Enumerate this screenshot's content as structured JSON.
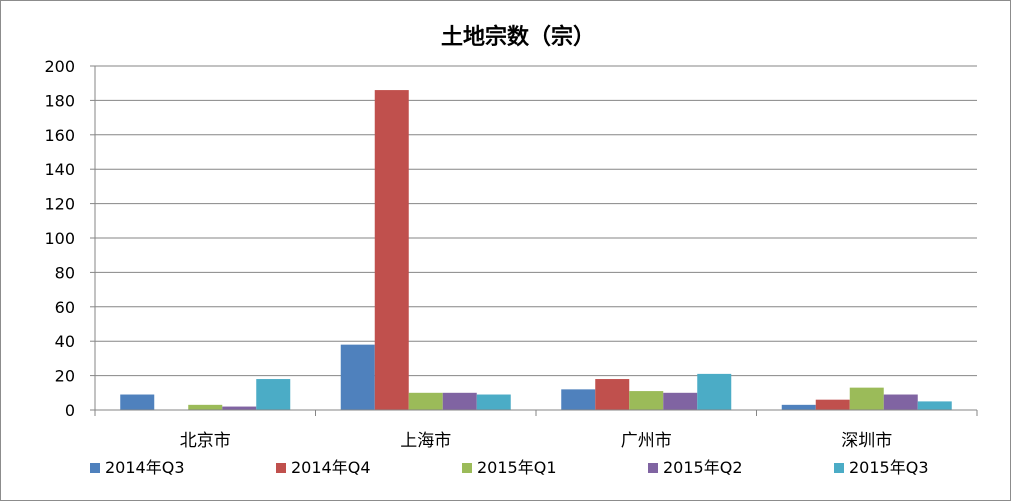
{
  "chart_data": {
    "type": "bar",
    "title": "土地宗数（宗）",
    "xlabel": "",
    "ylabel": "",
    "categories": [
      "北京市",
      "上海市",
      "广州市",
      "深圳市"
    ],
    "ylim": [
      0,
      200
    ],
    "yticks": [
      0,
      20,
      40,
      60,
      80,
      100,
      120,
      140,
      160,
      180,
      200
    ],
    "grid": true,
    "legend_position": "bottom",
    "series": [
      {
        "name": "2014年Q3",
        "color": "#4f81bd",
        "values": [
          9,
          38,
          12,
          3
        ]
      },
      {
        "name": "2014年Q4",
        "color": "#c0504d",
        "values": [
          0,
          186,
          18,
          6
        ]
      },
      {
        "name": "2015年Q1",
        "color": "#9bbb59",
        "values": [
          3,
          10,
          11,
          13
        ]
      },
      {
        "name": "2015年Q2",
        "color": "#8064a2",
        "values": [
          2,
          10,
          10,
          9
        ]
      },
      {
        "name": "2015年Q3",
        "color": "#4bacc6",
        "values": [
          18,
          9,
          21,
          5
        ]
      }
    ]
  }
}
